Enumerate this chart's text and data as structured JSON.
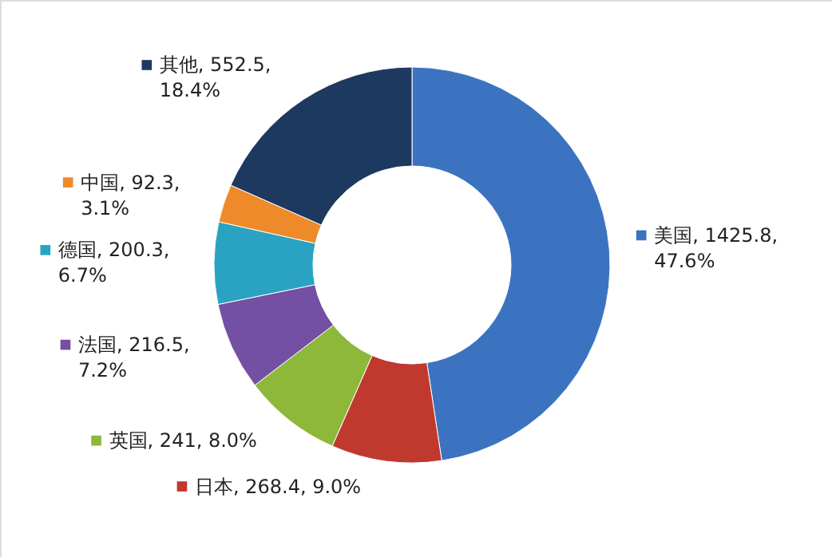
{
  "chart_data": {
    "type": "donut",
    "categories": [
      "美国",
      "日本",
      "英国",
      "法国",
      "德国",
      "中国",
      "其他"
    ],
    "values": [
      47.6,
      9.0,
      8.0,
      7.2,
      6.7,
      3.1,
      18.4
    ],
    "colors": [
      "#3b73c0",
      "#c0392f",
      "#8db83a",
      "#7350a3",
      "#2aa3c2",
      "#ee8a2a",
      "#1d3960"
    ],
    "value_labels": [
      ", 1425.8, 47.6%",
      ", 268.4, 9.0%",
      ", 241, 8.0%",
      ", 216.5, 7.2%",
      ", 200.3, 6.7%",
      ", 92.3, 3.1%",
      ", 552.5, 18.4%"
    ],
    "legend": "left"
  }
}
